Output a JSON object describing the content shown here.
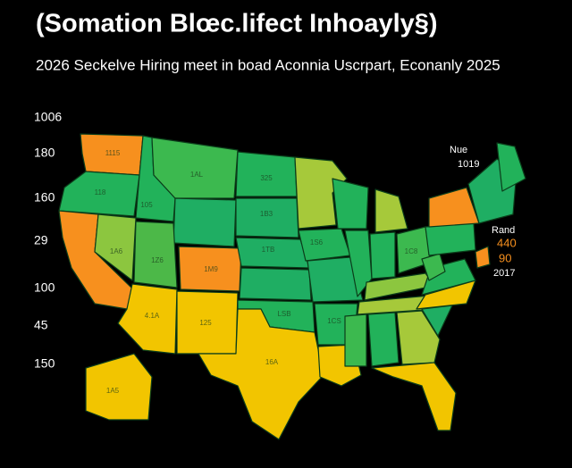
{
  "header": {
    "title": "(Somation Blœc.lifect Inhoayly§)",
    "subtitle": "2026 Seckelve Hiring meet in boad Aconnia Uscrpart, Econanly 2025"
  },
  "left_labels": [
    "1006",
    "180",
    "160",
    "29",
    "100",
    "45",
    "150"
  ],
  "legend": {
    "heading": "Nue",
    "value": "1019"
  },
  "side_labels": [
    "Rand",
    "440",
    "90",
    "2017"
  ],
  "state_labels": {
    "wa": "1115",
    "or": "118",
    "mt": "1AL",
    "nd": "325",
    "sd": "1B3",
    "id": "105",
    "ne": "1TB",
    "ia": "1S6",
    "nv": "1A6",
    "ut": "1Z6",
    "co": "1M9",
    "ok": "LSB",
    "tx": "16A",
    "az": "4.1A",
    "nm": "125",
    "ar": "1CS",
    "oh": "1C8",
    "ak": "1A5"
  }
}
